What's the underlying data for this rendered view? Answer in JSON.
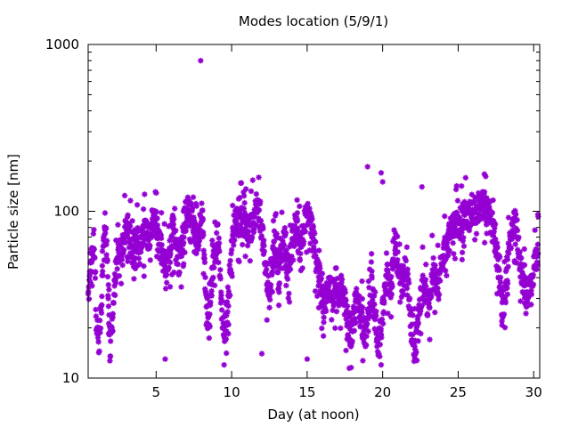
{
  "chart_data": {
    "type": "scatter",
    "title": "Modes location (5/9/1)",
    "xlabel": "Day (at noon)",
    "ylabel": "Particle size [nm]",
    "xlim": [
      0.5,
      30.4
    ],
    "ylim": [
      10,
      1000
    ],
    "y_scale": "log",
    "x_ticks": [
      5,
      10,
      15,
      20,
      25,
      30
    ],
    "x_tick_labels": [
      "5",
      "10",
      "15",
      "20",
      "25",
      "30"
    ],
    "y_ticks": [
      10,
      100,
      1000
    ],
    "y_tick_labels": [
      "10",
      "100",
      "1000"
    ],
    "grid": false,
    "legend": "none",
    "marker_color": "#9400d3",
    "marker": "asterisk",
    "trend": [
      [
        0.5,
        30
      ],
      [
        0.7,
        48
      ],
      [
        0.9,
        70
      ],
      [
        1.05,
        22
      ],
      [
        1.2,
        16
      ],
      [
        1.35,
        24
      ],
      [
        1.5,
        60
      ],
      [
        1.65,
        90
      ],
      [
        1.8,
        40
      ],
      [
        1.95,
        14
      ],
      [
        2.1,
        22
      ],
      [
        2.3,
        40
      ],
      [
        2.5,
        55
      ],
      [
        2.7,
        60
      ],
      [
        2.9,
        70
      ],
      [
        3.1,
        80
      ],
      [
        3.3,
        65
      ],
      [
        3.5,
        55
      ],
      [
        3.7,
        72
      ],
      [
        3.9,
        58
      ],
      [
        4.1,
        66
      ],
      [
        4.3,
        80
      ],
      [
        4.5,
        70
      ],
      [
        4.7,
        85
      ],
      [
        4.9,
        90
      ],
      [
        5.1,
        75
      ],
      [
        5.3,
        60
      ],
      [
        5.5,
        50
      ],
      [
        5.7,
        42
      ],
      [
        5.9,
        55
      ],
      [
        6.1,
        80
      ],
      [
        6.3,
        70
      ],
      [
        6.5,
        50
      ],
      [
        6.7,
        62
      ],
      [
        6.9,
        95
      ],
      [
        7.1,
        100
      ],
      [
        7.3,
        98
      ],
      [
        7.5,
        85
      ],
      [
        7.7,
        65
      ],
      [
        7.9,
        80
      ],
      [
        8.1,
        85
      ],
      [
        8.3,
        30
      ],
      [
        8.5,
        20
      ],
      [
        8.7,
        40
      ],
      [
        8.9,
        60
      ],
      [
        9.1,
        75
      ],
      [
        9.3,
        30
      ],
      [
        9.5,
        18
      ],
      [
        9.7,
        25
      ],
      [
        9.9,
        45
      ],
      [
        10.1,
        75
      ],
      [
        10.3,
        88
      ],
      [
        10.5,
        85
      ],
      [
        10.7,
        92
      ],
      [
        10.9,
        80
      ],
      [
        11.1,
        70
      ],
      [
        11.3,
        80
      ],
      [
        11.5,
        95
      ],
      [
        11.7,
        105
      ],
      [
        11.9,
        95
      ],
      [
        12.1,
        60
      ],
      [
        12.3,
        40
      ],
      [
        12.5,
        32
      ],
      [
        12.7,
        50
      ],
      [
        12.9,
        65
      ],
      [
        13.1,
        40
      ],
      [
        13.3,
        55
      ],
      [
        13.5,
        65
      ],
      [
        13.7,
        45
      ],
      [
        13.9,
        55
      ],
      [
        14.1,
        70
      ],
      [
        14.3,
        80
      ],
      [
        14.5,
        60
      ],
      [
        14.7,
        75
      ],
      [
        14.9,
        90
      ],
      [
        15.1,
        95
      ],
      [
        15.3,
        80
      ],
      [
        15.5,
        60
      ],
      [
        15.7,
        45
      ],
      [
        15.9,
        35
      ],
      [
        16.1,
        28
      ],
      [
        16.3,
        32
      ],
      [
        16.5,
        36
      ],
      [
        16.7,
        34
      ],
      [
        16.9,
        30
      ],
      [
        17.1,
        32
      ],
      [
        17.3,
        35
      ],
      [
        17.5,
        28
      ],
      [
        17.7,
        22
      ],
      [
        17.9,
        18
      ],
      [
        18.1,
        22
      ],
      [
        18.3,
        30
      ],
      [
        18.5,
        25
      ],
      [
        18.7,
        20
      ],
      [
        18.9,
        18
      ],
      [
        19.1,
        25
      ],
      [
        19.3,
        35
      ],
      [
        19.5,
        22
      ],
      [
        19.7,
        16
      ],
      [
        19.9,
        20
      ],
      [
        20.1,
        30
      ],
      [
        20.3,
        40
      ],
      [
        20.5,
        35
      ],
      [
        20.7,
        45
      ],
      [
        20.9,
        55
      ],
      [
        21.1,
        40
      ],
      [
        21.3,
        35
      ],
      [
        21.5,
        45
      ],
      [
        21.7,
        35
      ],
      [
        21.9,
        20
      ],
      [
        22.1,
        15
      ],
      [
        22.3,
        18
      ],
      [
        22.5,
        28
      ],
      [
        22.7,
        38
      ],
      [
        22.9,
        30
      ],
      [
        23.1,
        25
      ],
      [
        23.3,
        45
      ],
      [
        23.5,
        40
      ],
      [
        23.7,
        35
      ],
      [
        23.9,
        50
      ],
      [
        24.1,
        60
      ],
      [
        24.3,
        65
      ],
      [
        24.5,
        75
      ],
      [
        24.7,
        80
      ],
      [
        24.9,
        85
      ],
      [
        25.1,
        88
      ],
      [
        25.3,
        90
      ],
      [
        25.5,
        95
      ],
      [
        25.7,
        92
      ],
      [
        25.9,
        98
      ],
      [
        26.1,
        100
      ],
      [
        26.3,
        105
      ],
      [
        26.5,
        110
      ],
      [
        26.7,
        108
      ],
      [
        26.9,
        100
      ],
      [
        27.1,
        95
      ],
      [
        27.3,
        80
      ],
      [
        27.5,
        60
      ],
      [
        27.7,
        45
      ],
      [
        27.9,
        25
      ],
      [
        28.1,
        30
      ],
      [
        28.3,
        50
      ],
      [
        28.5,
        70
      ],
      [
        28.7,
        85
      ],
      [
        28.9,
        75
      ],
      [
        29.1,
        50
      ],
      [
        29.3,
        38
      ],
      [
        29.5,
        32
      ],
      [
        29.7,
        34
      ],
      [
        29.9,
        40
      ],
      [
        30.1,
        50
      ],
      [
        30.3,
        58
      ]
    ],
    "outliers": [
      [
        7.95,
        800
      ],
      [
        19.0,
        185
      ],
      [
        19.9,
        170
      ],
      [
        20.0,
        150
      ],
      [
        22.6,
        140
      ],
      [
        5.6,
        13
      ],
      [
        9.5,
        12
      ],
      [
        19.9,
        12
      ],
      [
        12.0,
        14
      ],
      [
        15.0,
        13
      ]
    ]
  }
}
